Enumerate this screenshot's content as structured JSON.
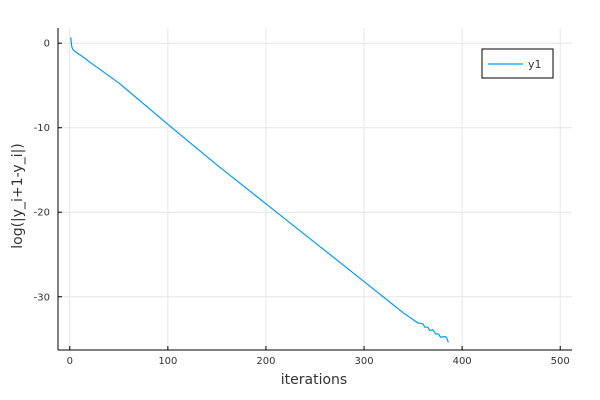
{
  "chart_data": {
    "type": "line",
    "title": "",
    "xlabel": "iterations",
    "ylabel": "log(|y_i+1-y_i|)",
    "xlim": [
      -12,
      512
    ],
    "ylim": [
      -36.3,
      1.8
    ],
    "xticks": [
      0,
      100,
      200,
      300,
      400,
      500
    ],
    "yticks": [
      0,
      -10,
      -20,
      -30
    ],
    "grid": true,
    "legend": "top-right",
    "series": [
      {
        "name": "y1",
        "color": "#009AF9",
        "points": [
          [
            1,
            0.7
          ],
          [
            2,
            -0.4
          ],
          [
            3,
            -0.7
          ],
          [
            5,
            -0.95
          ],
          [
            8,
            -1.2
          ],
          [
            12,
            -1.5
          ],
          [
            20,
            -2.2
          ],
          [
            50,
            -4.7
          ],
          [
            100,
            -9.6
          ],
          [
            150,
            -14.4
          ],
          [
            200,
            -19.0
          ],
          [
            250,
            -23.6
          ],
          [
            300,
            -28.2
          ],
          [
            340,
            -31.9
          ],
          [
            355,
            -33.1
          ],
          [
            360,
            -33.2
          ],
          [
            362,
            -33.6
          ],
          [
            365,
            -33.6
          ],
          [
            367,
            -34.0
          ],
          [
            370,
            -33.9
          ],
          [
            373,
            -34.4
          ],
          [
            376,
            -34.4
          ],
          [
            378,
            -34.8
          ],
          [
            382,
            -34.7
          ],
          [
            384,
            -34.8
          ],
          [
            386,
            -35.4
          ]
        ]
      }
    ]
  }
}
